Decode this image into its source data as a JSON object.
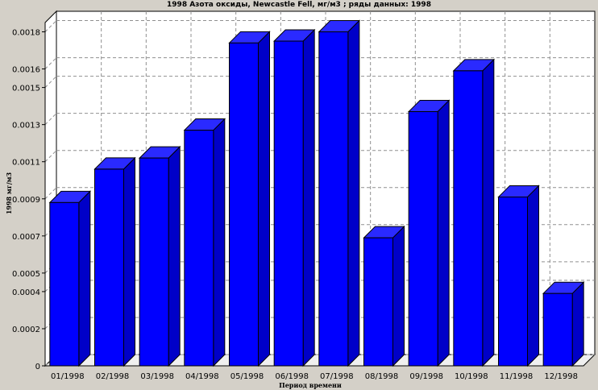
{
  "chart_data": {
    "type": "bar",
    "title": "1998 Азота оксиды, Newcastle Fell,  мг/м3 ; ряды данных: 1998",
    "xlabel": "Период времени",
    "ylabel": "1998  мг/м3",
    "categories": [
      "01/1998",
      "02/1998",
      "03/1998",
      "04/1998",
      "05/1998",
      "06/1998",
      "07/1998",
      "08/1998",
      "09/1998",
      "10/1998",
      "11/1998",
      "12/1998"
    ],
    "series": [
      {
        "name": "1998",
        "values": [
          0.00088,
          0.00106,
          0.00112,
          0.00127,
          0.00174,
          0.00175,
          0.0018,
          0.00069,
          0.00137,
          0.00159,
          0.00091,
          0.00039
        ]
      }
    ],
    "ylim": [
      0,
      0.00185
    ],
    "yticks": [
      0,
      0.0002,
      0.0004,
      0.0005,
      0.0007,
      0.0009,
      0.0011,
      0.0013,
      0.0015,
      0.0016,
      0.0018
    ],
    "ytick_labels": [
      "0",
      "0.0002",
      "0.0004",
      "0.0005",
      "0.0007",
      "0.0009",
      "0.0011",
      "0.0013",
      "0.0015",
      "0.0016",
      "0.0018"
    ],
    "grid": true,
    "legend": "none",
    "colors": {
      "bar_front": "#0000ff",
      "bar_top": "#2a2aff",
      "bar_side": "#0000c8",
      "plot_back": "#ffffff",
      "plot_floor": "#f0f0f0",
      "grid": "#909090",
      "background": "#d4d0c8"
    }
  }
}
